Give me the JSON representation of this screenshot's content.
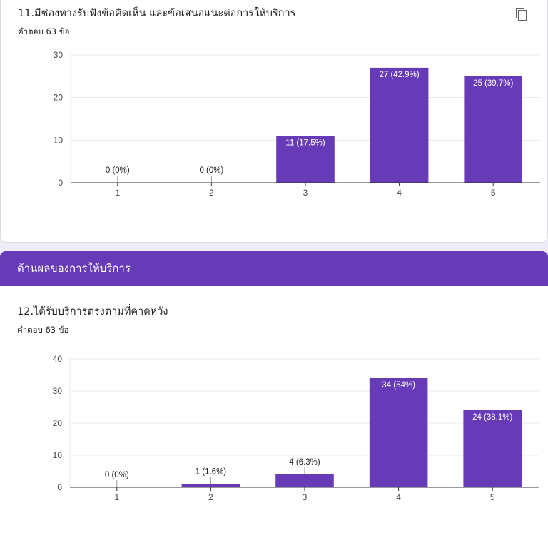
{
  "colors": {
    "accent": "#673ab7",
    "bar": "#673ab7",
    "background": "#f0ebf8"
  },
  "question11": {
    "title": "11.มีช่องทางรับฟังข้อคิดเห็น และข้อเสนอแนะต่อการให้บริการ",
    "response_count": "คำตอบ 63 ข้อ",
    "copy_icon": "copy-icon"
  },
  "section": {
    "title": "ด้านผลของการให้บริการ"
  },
  "question12": {
    "title": "12.ได้รับบริการตรงตามที่คาดหวัง",
    "response_count": "คำตอบ 63 ข้อ"
  },
  "chart_data": [
    {
      "type": "bar",
      "categories": [
        "1",
        "2",
        "3",
        "4",
        "5"
      ],
      "values": [
        0,
        0,
        11,
        27,
        25
      ],
      "data_labels": [
        "0 (0%)",
        "0 (0%)",
        "11 (17.5%)",
        "27 (42.9%)",
        "25 (39.7%)"
      ],
      "yticks": [
        0,
        10,
        20,
        30
      ],
      "ylim": [
        0,
        30
      ],
      "grid": true
    },
    {
      "type": "bar",
      "categories": [
        "1",
        "2",
        "3",
        "4",
        "5"
      ],
      "values": [
        0,
        1,
        4,
        34,
        24
      ],
      "data_labels": [
        "0 (0%)",
        "1 (1.6%)",
        "4 (6.3%)",
        "34 (54%)",
        "24 (38.1%)"
      ],
      "yticks": [
        0,
        10,
        20,
        30,
        40
      ],
      "ylim": [
        0,
        40
      ],
      "grid": true
    }
  ]
}
